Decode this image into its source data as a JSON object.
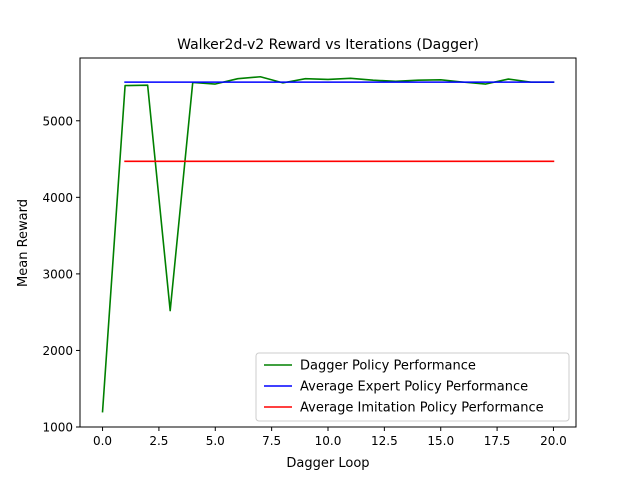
{
  "chart_data": {
    "type": "line",
    "title": "Walker2d-v2 Reward vs Iterations (Dagger)",
    "xlabel": "Dagger Loop",
    "ylabel": "Mean Reward",
    "xlim": [
      -1.0,
      21.0
    ],
    "ylim": [
      1000,
      5820
    ],
    "x_ticks": [
      0.0,
      2.5,
      5.0,
      7.5,
      10.0,
      12.5,
      15.0,
      17.5,
      20.0
    ],
    "x_tick_labels": [
      "0.0",
      "2.5",
      "5.0",
      "7.5",
      "10.0",
      "12.5",
      "15.0",
      "17.5",
      "20.0"
    ],
    "y_ticks": [
      1000,
      2000,
      3000,
      4000,
      5000
    ],
    "y_tick_labels": [
      "1000",
      "2000",
      "3000",
      "4000",
      "5000"
    ],
    "grid": false,
    "legend_position": "lower-right",
    "series": [
      {
        "name": "Dagger Policy Performance",
        "color": "#008000",
        "x": [
          0,
          1,
          2,
          3,
          4,
          5,
          6,
          7,
          8,
          9,
          10,
          11,
          12,
          13,
          14,
          15,
          16,
          17,
          18,
          19,
          20
        ],
        "y": [
          1200,
          5460,
          5465,
          2520,
          5500,
          5480,
          5550,
          5575,
          5495,
          5550,
          5540,
          5555,
          5530,
          5515,
          5530,
          5535,
          5505,
          5480,
          5545,
          5505,
          5505
        ]
      },
      {
        "name": "Average Expert Policy Performance",
        "color": "#0000ff",
        "x": [
          1,
          20
        ],
        "y": [
          5505,
          5505
        ]
      },
      {
        "name": "Average Imitation Policy Performance",
        "color": "#ff0000",
        "x": [
          1,
          20
        ],
        "y": [
          4470,
          4470
        ]
      }
    ]
  }
}
